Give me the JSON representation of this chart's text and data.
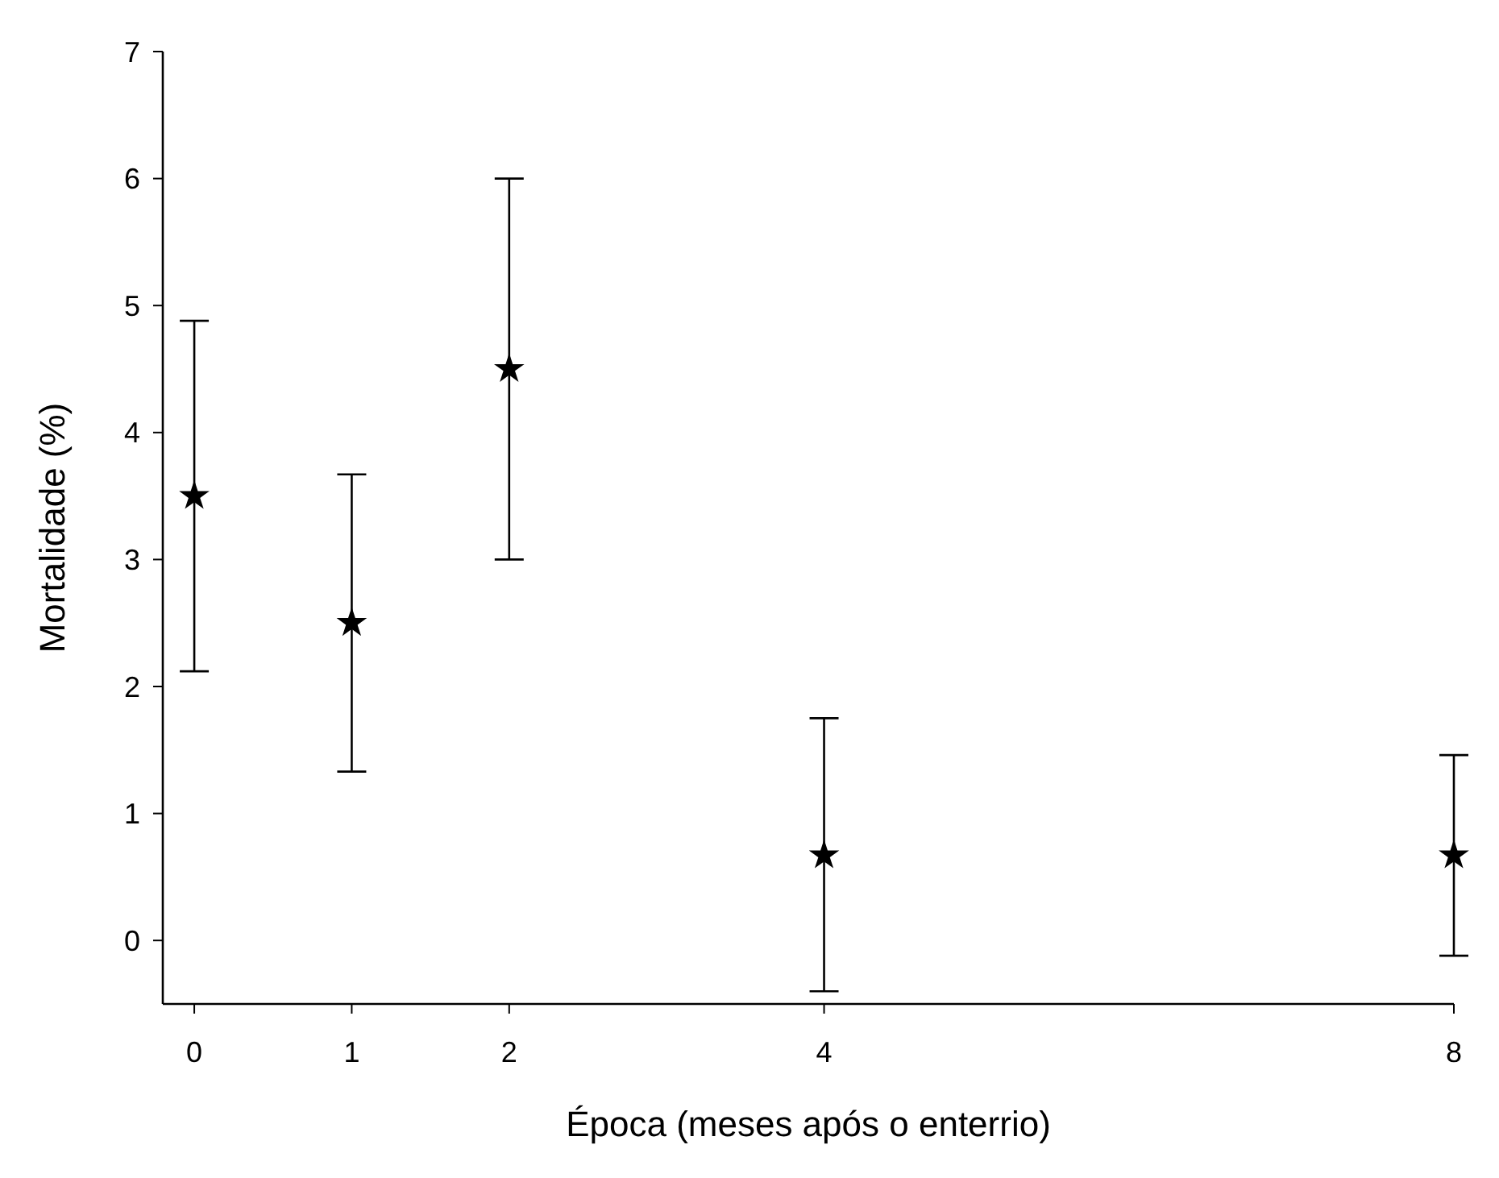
{
  "chart_data": {
    "type": "scatter",
    "xlabel": "Época (meses após o enterrio)",
    "ylabel": "Mortalidade (%)",
    "x": [
      0,
      1,
      2,
      4,
      8
    ],
    "values": [
      3.5,
      2.5,
      4.5,
      0.67,
      0.67
    ],
    "errors": [
      [
        2.12,
        4.88
      ],
      [
        1.33,
        3.67
      ],
      [
        3,
        6
      ],
      [
        -0.4,
        1.75
      ],
      [
        -0.12,
        1.46
      ]
    ],
    "color": "#000000",
    "marker": "star",
    "xlim": [
      -0.2,
      8
    ],
    "xticks": [
      0,
      1,
      2,
      4,
      8
    ],
    "ylim": [
      -0.5,
      7
    ],
    "yticks": [
      0,
      1,
      2,
      3,
      4,
      5,
      6,
      7
    ],
    "grid": false
  }
}
